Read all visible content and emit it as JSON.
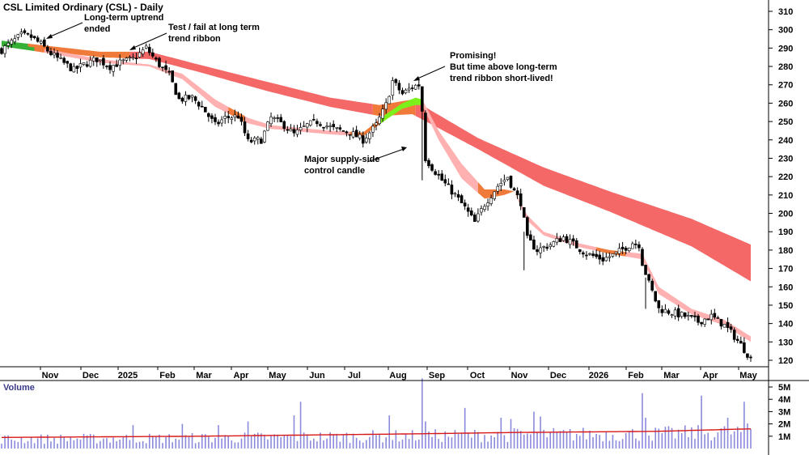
{
  "chart_data": [
    {
      "type": "candlestick",
      "title": "CSL Limited Ordinary (CSL) - Daily",
      "x_labels": [
        "Nov",
        "Dec",
        "2025",
        "Feb",
        "Mar",
        "Apr",
        "May",
        "Jun",
        "Jul",
        "Aug",
        "Sep",
        "Oct",
        "Nov",
        "Dec",
        "2026",
        "Feb",
        "Mar",
        "Apr",
        "May"
      ],
      "y_ticks": [
        120,
        130,
        140,
        150,
        160,
        170,
        180,
        190,
        200,
        210,
        220,
        230,
        240,
        250,
        260,
        270,
        280,
        290,
        300,
        310
      ],
      "ylim": [
        115,
        315
      ],
      "price_anchors": [
        [
          0,
          289
        ],
        [
          6,
          297
        ],
        [
          9,
          296
        ],
        [
          12,
          292
        ],
        [
          15,
          287
        ],
        [
          18,
          283
        ],
        [
          22,
          278
        ],
        [
          25,
          281
        ],
        [
          29,
          284
        ],
        [
          33,
          280
        ],
        [
          36,
          282
        ],
        [
          40,
          284
        ],
        [
          44,
          290
        ],
        [
          47,
          283
        ],
        [
          51,
          275
        ],
        [
          54,
          262
        ],
        [
          58,
          263
        ],
        [
          61,
          258
        ],
        [
          65,
          248
        ],
        [
          68,
          252
        ],
        [
          72,
          253
        ],
        [
          75,
          239
        ],
        [
          79,
          240
        ],
        [
          82,
          252
        ],
        [
          86,
          248
        ],
        [
          89,
          243
        ],
        [
          93,
          248
        ],
        [
          96,
          250
        ],
        [
          101,
          246
        ],
        [
          106,
          244
        ],
        [
          110,
          240
        ],
        [
          114,
          248
        ],
        [
          117,
          259
        ],
        [
          119,
          272
        ],
        [
          122,
          265
        ],
        [
          125,
          269
        ],
        [
          127,
          270
        ],
        [
          128,
          256
        ],
        [
          129,
          230
        ],
        [
          131,
          225
        ],
        [
          134,
          218
        ],
        [
          138,
          210
        ],
        [
          141,
          203
        ],
        [
          144,
          195
        ],
        [
          147,
          205
        ],
        [
          151,
          215
        ],
        [
          154,
          220
        ],
        [
          156,
          212
        ],
        [
          158,
          206
        ],
        [
          160,
          186
        ],
        [
          163,
          180
        ],
        [
          167,
          183
        ],
        [
          171,
          187
        ],
        [
          175,
          182
        ],
        [
          178,
          178
        ],
        [
          183,
          175
        ],
        [
          187,
          178
        ],
        [
          192,
          184
        ],
        [
          194,
          183
        ],
        [
          195,
          173
        ],
        [
          197,
          162
        ],
        [
          200,
          148
        ],
        [
          204,
          146
        ],
        [
          208,
          144
        ],
        [
          212,
          141
        ],
        [
          216,
          144
        ],
        [
          220,
          139
        ],
        [
          223,
          133
        ],
        [
          226,
          126
        ],
        [
          228,
          121
        ]
      ],
      "ribbons": [
        {
          "name": "long-term trend ribbon",
          "upper": [
            [
              0,
              294
            ],
            [
              30,
              288
            ],
            [
              45,
              288
            ],
            [
              60,
              281
            ],
            [
              80,
              272
            ],
            [
              100,
              263
            ],
            [
              115,
              259
            ],
            [
              125,
              262
            ],
            [
              145,
              241
            ],
            [
              165,
              225
            ],
            [
              185,
              212
            ],
            [
              210,
              197
            ],
            [
              228,
              183
            ]
          ],
          "lower": [
            [
              0,
              291
            ],
            [
              30,
              285
            ],
            [
              45,
              284
            ],
            [
              60,
              277
            ],
            [
              80,
              267
            ],
            [
              100,
              258
            ],
            [
              115,
              253
            ],
            [
              125,
              254
            ],
            [
              145,
              235
            ],
            [
              165,
              215
            ],
            [
              185,
              201
            ],
            [
              210,
              182
            ],
            [
              228,
              163
            ]
          ],
          "colors": [
            "#37b037",
            "#f07a3a",
            "#f46868"
          ],
          "segments": [
            [
              0,
              7,
              "green"
            ],
            [
              8,
              38,
              "orange"
            ],
            [
              39,
              112,
              "red"
            ],
            [
              113,
              125,
              "orange"
            ],
            [
              126,
              228,
              "red"
            ]
          ]
        },
        {
          "name": "short-term trend ribbon",
          "upper": [
            [
              0,
              293
            ],
            [
              15,
              289
            ],
            [
              30,
              284
            ],
            [
              45,
              281
            ],
            [
              55,
              276
            ],
            [
              65,
              262
            ],
            [
              75,
              252
            ],
            [
              82,
              248
            ],
            [
              100,
              245
            ],
            [
              110,
              244
            ],
            [
              117,
              254
            ],
            [
              122,
              260
            ],
            [
              126,
              263
            ],
            [
              128,
              262
            ],
            [
              133,
              245
            ],
            [
              140,
              227
            ],
            [
              147,
              213
            ],
            [
              153,
              213
            ],
            [
              156,
              212
            ],
            [
              160,
              199
            ],
            [
              165,
              190
            ],
            [
              175,
              184
            ],
            [
              185,
              180
            ],
            [
              195,
              178
            ],
            [
              200,
              160
            ],
            [
              210,
              148
            ],
            [
              220,
              142
            ],
            [
              228,
              133
            ]
          ],
          "lower": [
            [
              0,
              291
            ],
            [
              15,
              287
            ],
            [
              30,
              282
            ],
            [
              45,
              280
            ],
            [
              55,
              273
            ],
            [
              65,
              258
            ],
            [
              75,
              249
            ],
            [
              82,
              246
            ],
            [
              100,
              243
            ],
            [
              110,
              242
            ],
            [
              117,
              251
            ],
            [
              122,
              257
            ],
            [
              126,
              259
            ],
            [
              128,
              259
            ],
            [
              133,
              240
            ],
            [
              140,
              219
            ],
            [
              147,
              208
            ],
            [
              153,
              210
            ],
            [
              156,
              212
            ],
            [
              160,
              196
            ],
            [
              165,
              188
            ],
            [
              175,
              182
            ],
            [
              185,
              178
            ],
            [
              195,
              175
            ],
            [
              200,
              156
            ],
            [
              210,
              145
            ],
            [
              220,
              139
            ],
            [
              228,
              130
            ]
          ],
          "colors": [
            "#37b037",
            "#f07a3a",
            "#ffb0b0",
            "#7cf01a"
          ],
          "segments": [
            [
              0,
              9,
              "green"
            ],
            [
              10,
              12,
              "orange"
            ],
            [
              13,
              68,
              "pink"
            ],
            [
              69,
              73,
              "orange"
            ],
            [
              74,
              105,
              "pink"
            ],
            [
              106,
              114,
              "orange"
            ],
            [
              115,
              127,
              "lime"
            ],
            [
              128,
              144,
              "pink"
            ],
            [
              145,
              156,
              "orange"
            ],
            [
              157,
              180,
              "pink"
            ],
            [
              181,
              189,
              "orange"
            ],
            [
              190,
              228,
              "pink"
            ]
          ]
        }
      ],
      "annotations": [
        {
          "lines": [
            "Long-term uptrend",
            "ended"
          ]
        },
        {
          "lines": [
            "Test / fail at long term",
            "trend ribbon"
          ]
        },
        {
          "lines": [
            "Promising!",
            "But time above long-term",
            "trend ribbon short-lived!"
          ]
        },
        {
          "lines": [
            "Major supply-side",
            "control candle"
          ]
        }
      ]
    },
    {
      "type": "bar",
      "title": "Volume",
      "y_ticks": [
        "5M",
        "4M",
        "3M",
        "2M",
        "1M"
      ],
      "volume_spikes": [
        [
          40,
          1.9
        ],
        [
          55,
          2.0
        ],
        [
          66,
          1.9
        ],
        [
          75,
          2.2
        ],
        [
          89,
          2.7
        ],
        [
          91,
          3.8
        ],
        [
          118,
          2.7
        ],
        [
          128,
          5.7
        ],
        [
          129,
          2.2
        ],
        [
          141,
          3.3
        ],
        [
          152,
          2.5
        ],
        [
          155,
          2.4
        ],
        [
          162,
          3.0
        ],
        [
          164,
          2.6
        ],
        [
          195,
          4.5
        ],
        [
          196,
          2.5
        ],
        [
          213,
          4.3
        ],
        [
          221,
          2.5
        ],
        [
          226,
          3.8
        ]
      ],
      "average_line": [
        [
          0,
          0.9
        ],
        [
          60,
          1.0
        ],
        [
          128,
          1.2
        ],
        [
          155,
          1.3
        ],
        [
          200,
          1.4
        ],
        [
          228,
          1.6
        ]
      ],
      "colors": {
        "bars": "#8a8adc",
        "average": "#d81818"
      }
    }
  ]
}
